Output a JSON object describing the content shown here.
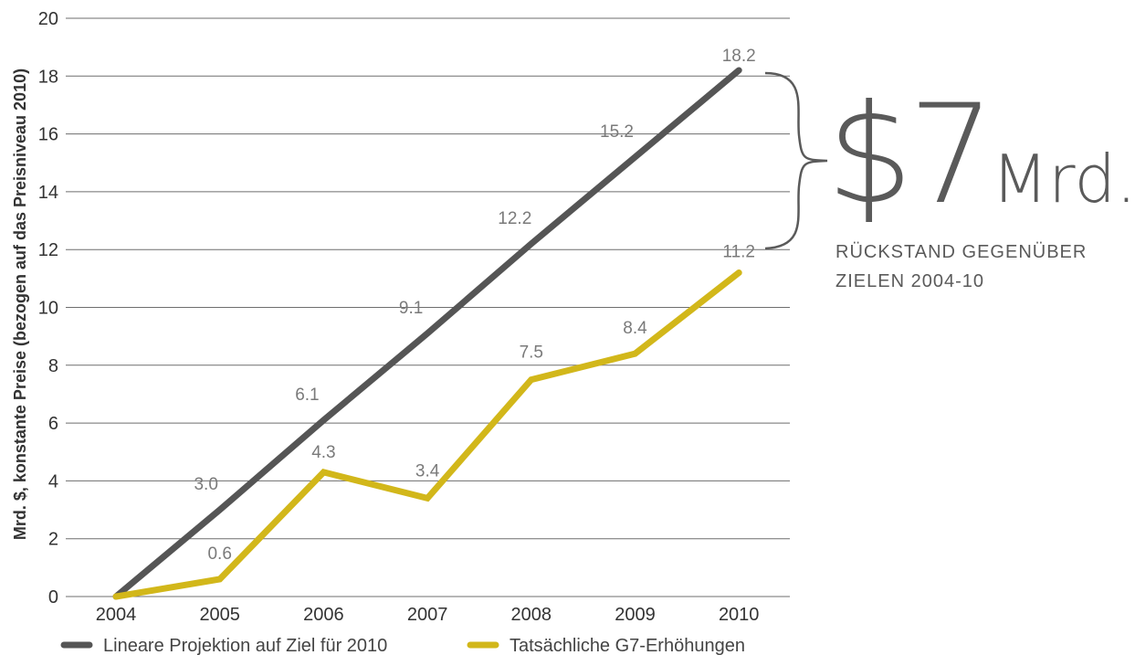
{
  "chart_data": {
    "type": "line",
    "ylabel": "Mrd. $, konstante Preise (bezogen auf das Preisniveau 2010)",
    "xlabel": "",
    "ylim": [
      0,
      20
    ],
    "yticks": [
      "0",
      "2",
      "4",
      "6",
      "8",
      "10",
      "12",
      "14",
      "16",
      "18",
      "20"
    ],
    "categories": [
      "2004",
      "2005",
      "2006",
      "2007",
      "2008",
      "2009",
      "2010"
    ],
    "series": [
      {
        "name": "Lineare Projektion auf Ziel für 2010",
        "color": "#555555",
        "values": [
          0,
          3.0,
          6.1,
          9.1,
          12.2,
          15.2,
          18.2
        ],
        "labels": [
          "",
          "3.0",
          "6.1",
          "9.1",
          "12.2",
          "15.2",
          "18.2"
        ]
      },
      {
        "name": "Tatsächliche G7-Erhöhungen",
        "color": "#d2b71a",
        "values": [
          0,
          0.6,
          4.3,
          3.4,
          7.5,
          8.4,
          11.2
        ],
        "labels": [
          "",
          "0.6",
          "4.3",
          "3.4",
          "7.5",
          "8.4",
          "11.2"
        ]
      }
    ],
    "grid": true,
    "legend_position": "bottom"
  },
  "callout": {
    "amount": "$7",
    "unit": "Mrd.",
    "caption_line1": "RÜCKSTAND GEGENÜBER",
    "caption_line2": "ZIELEN 2004-10",
    "color": "#5a5a5a"
  }
}
